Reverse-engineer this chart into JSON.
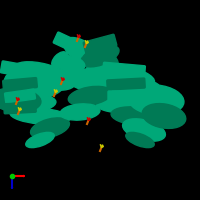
{
  "background_color": "#000000",
  "fig_size": [
    2.0,
    2.0
  ],
  "dpi": 100,
  "protein_color": "#00A878",
  "protein_dark": "#007A55",
  "ligand_orange": "#CC6600",
  "ligand_yellow": "#CCCC00",
  "ligand_red": "#CC0000",
  "axis_x_color": "#FF0000",
  "axis_y_color": "#0000CC",
  "axis_dot_color": "#00CC00"
}
